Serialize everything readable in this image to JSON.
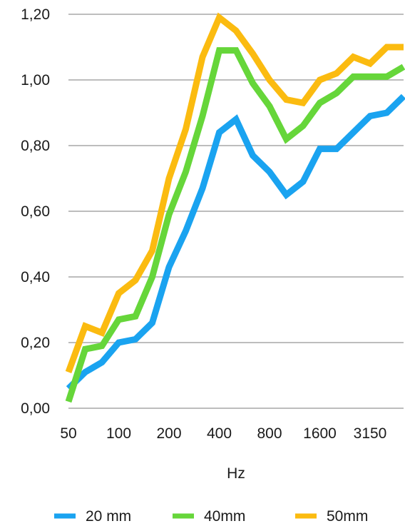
{
  "chart_data": {
    "type": "line",
    "xlabel": "Hz",
    "ylabel": "",
    "ylim": [
      0,
      1.2
    ],
    "y_ticks": [
      "0,00",
      "0,20",
      "0,40",
      "0,60",
      "0,80",
      "1,00",
      "1,20"
    ],
    "y_tick_values": [
      0,
      0.2,
      0.4,
      0.6,
      0.8,
      1.0,
      1.2
    ],
    "categories": [
      "50",
      "63",
      "80",
      "100",
      "125",
      "160",
      "200",
      "250",
      "315",
      "400",
      "500",
      "630",
      "800",
      "1000",
      "1250",
      "1600",
      "2000",
      "2500",
      "3150",
      "4000",
      "5000"
    ],
    "x_tick_labels": [
      {
        "category": "50",
        "label": "50"
      },
      {
        "category": "100",
        "label": "100"
      },
      {
        "category": "200",
        "label": "200"
      },
      {
        "category": "400",
        "label": "400"
      },
      {
        "category": "800",
        "label": "800"
      },
      {
        "category": "1600",
        "label": "1600"
      },
      {
        "category": "3150",
        "label": "3150"
      }
    ],
    "grid": true,
    "legend_position": "bottom",
    "series": [
      {
        "name": "20 mm",
        "color": "#1aa3f0",
        "values": [
          0.06,
          0.11,
          0.14,
          0.2,
          0.21,
          0.26,
          0.43,
          0.54,
          0.67,
          0.84,
          0.88,
          0.77,
          0.72,
          0.65,
          0.69,
          0.79,
          0.79,
          0.84,
          0.89,
          0.9,
          0.95
        ]
      },
      {
        "name": "40mm",
        "color": "#66d63a",
        "values": [
          0.02,
          0.18,
          0.19,
          0.27,
          0.28,
          0.4,
          0.59,
          0.72,
          0.89,
          1.09,
          1.09,
          0.99,
          0.92,
          0.82,
          0.86,
          0.93,
          0.96,
          1.01,
          1.01,
          1.01,
          1.04
        ]
      },
      {
        "name": "50mm",
        "color": "#fbbb10",
        "values": [
          0.11,
          0.25,
          0.23,
          0.35,
          0.39,
          0.48,
          0.7,
          0.85,
          1.07,
          1.19,
          1.15,
          1.08,
          1.0,
          0.94,
          0.93,
          1.0,
          1.02,
          1.07,
          1.05,
          1.1,
          1.1
        ]
      }
    ]
  }
}
